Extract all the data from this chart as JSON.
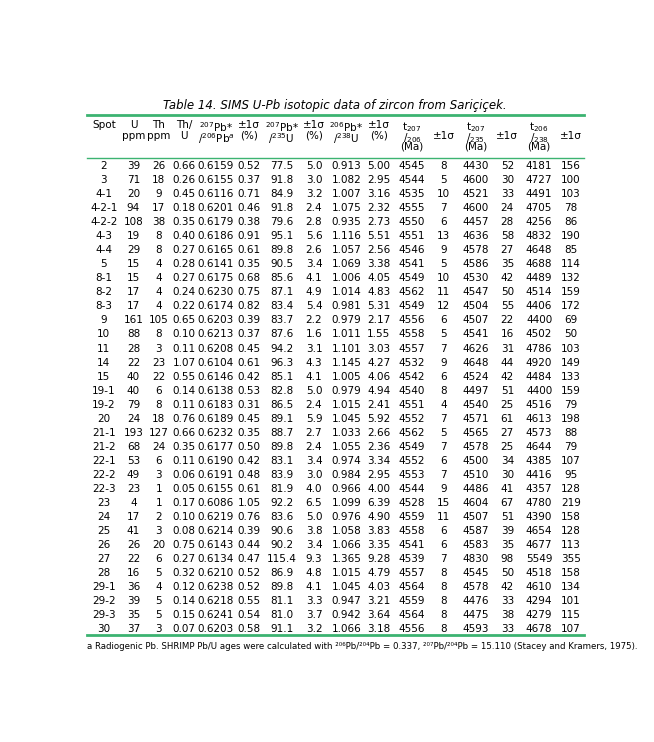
{
  "title": "Table 14. SIMS U-Pb isotopic data of zircon from Sariçiçek.",
  "bg_color": "#ffffff",
  "line_color": "#3cb371",
  "text_color": "#000000",
  "font_size": 7.5,
  "header_font_size": 7.5,
  "rows": [
    [
      "2",
      "39",
      "26",
      "0.66",
      "0.6159",
      "0.52",
      "77.5",
      "5.0",
      "0.913",
      "5.00",
      "4545",
      "8",
      "4430",
      "52",
      "4181",
      "156"
    ],
    [
      "3",
      "71",
      "18",
      "0.26",
      "0.6155",
      "0.37",
      "91.8",
      "3.0",
      "1.082",
      "2.95",
      "4544",
      "5",
      "4600",
      "30",
      "4727",
      "100"
    ],
    [
      "4-1",
      "20",
      "9",
      "0.45",
      "0.6116",
      "0.71",
      "84.9",
      "3.2",
      "1.007",
      "3.16",
      "4535",
      "10",
      "4521",
      "33",
      "4491",
      "103"
    ],
    [
      "4-2-1",
      "94",
      "17",
      "0.18",
      "0.6201",
      "0.46",
      "91.8",
      "2.4",
      "1.075",
      "2.32",
      "4555",
      "7",
      "4600",
      "24",
      "4705",
      "78"
    ],
    [
      "4-2-2",
      "108",
      "38",
      "0.35",
      "0.6179",
      "0.38",
      "79.6",
      "2.8",
      "0.935",
      "2.73",
      "4550",
      "6",
      "4457",
      "28",
      "4256",
      "86"
    ],
    [
      "4-3",
      "19",
      "8",
      "0.40",
      "0.6186",
      "0.91",
      "95.1",
      "5.6",
      "1.116",
      "5.51",
      "4551",
      "13",
      "4636",
      "58",
      "4832",
      "190"
    ],
    [
      "4-4",
      "29",
      "8",
      "0.27",
      "0.6165",
      "0.61",
      "89.8",
      "2.6",
      "1.057",
      "2.56",
      "4546",
      "9",
      "4578",
      "27",
      "4648",
      "85"
    ],
    [
      "5",
      "15",
      "4",
      "0.28",
      "0.6141",
      "0.35",
      "90.5",
      "3.4",
      "1.069",
      "3.38",
      "4541",
      "5",
      "4586",
      "35",
      "4688",
      "114"
    ],
    [
      "8-1",
      "15",
      "4",
      "0.27",
      "0.6175",
      "0.68",
      "85.6",
      "4.1",
      "1.006",
      "4.05",
      "4549",
      "10",
      "4530",
      "42",
      "4489",
      "132"
    ],
    [
      "8-2",
      "17",
      "4",
      "0.24",
      "0.6230",
      "0.75",
      "87.1",
      "4.9",
      "1.014",
      "4.83",
      "4562",
      "11",
      "4547",
      "50",
      "4514",
      "159"
    ],
    [
      "8-3",
      "17",
      "4",
      "0.22",
      "0.6174",
      "0.82",
      "83.4",
      "5.4",
      "0.981",
      "5.31",
      "4549",
      "12",
      "4504",
      "55",
      "4406",
      "172"
    ],
    [
      "9",
      "161",
      "105",
      "0.65",
      "0.6203",
      "0.39",
      "83.7",
      "2.2",
      "0.979",
      "2.17",
      "4556",
      "6",
      "4507",
      "22",
      "4400",
      "69"
    ],
    [
      "10",
      "88",
      "8",
      "0.10",
      "0.6213",
      "0.37",
      "87.6",
      "1.6",
      "1.011",
      "1.55",
      "4558",
      "5",
      "4541",
      "16",
      "4502",
      "50"
    ],
    [
      "11",
      "28",
      "3",
      "0.11",
      "0.6208",
      "0.45",
      "94.2",
      "3.1",
      "1.101",
      "3.03",
      "4557",
      "7",
      "4626",
      "31",
      "4786",
      "103"
    ],
    [
      "14",
      "22",
      "23",
      "1.07",
      "0.6104",
      "0.61",
      "96.3",
      "4.3",
      "1.145",
      "4.27",
      "4532",
      "9",
      "4648",
      "44",
      "4920",
      "149"
    ],
    [
      "15",
      "40",
      "22",
      "0.55",
      "0.6146",
      "0.42",
      "85.1",
      "4.1",
      "1.005",
      "4.06",
      "4542",
      "6",
      "4524",
      "42",
      "4484",
      "133"
    ],
    [
      "19-1",
      "40",
      "6",
      "0.14",
      "0.6138",
      "0.53",
      "82.8",
      "5.0",
      "0.979",
      "4.94",
      "4540",
      "8",
      "4497",
      "51",
      "4400",
      "159"
    ],
    [
      "19-2",
      "79",
      "8",
      "0.11",
      "0.6183",
      "0.31",
      "86.5",
      "2.4",
      "1.015",
      "2.41",
      "4551",
      "4",
      "4540",
      "25",
      "4516",
      "79"
    ],
    [
      "20",
      "24",
      "18",
      "0.76",
      "0.6189",
      "0.45",
      "89.1",
      "5.9",
      "1.045",
      "5.92",
      "4552",
      "7",
      "4571",
      "61",
      "4613",
      "198"
    ],
    [
      "21-1",
      "193",
      "127",
      "0.66",
      "0.6232",
      "0.35",
      "88.7",
      "2.7",
      "1.033",
      "2.66",
      "4562",
      "5",
      "4565",
      "27",
      "4573",
      "88"
    ],
    [
      "21-2",
      "68",
      "24",
      "0.35",
      "0.6177",
      "0.50",
      "89.8",
      "2.4",
      "1.055",
      "2.36",
      "4549",
      "7",
      "4578",
      "25",
      "4644",
      "79"
    ],
    [
      "22-1",
      "53",
      "6",
      "0.11",
      "0.6190",
      "0.42",
      "83.1",
      "3.4",
      "0.974",
      "3.34",
      "4552",
      "6",
      "4500",
      "34",
      "4385",
      "107"
    ],
    [
      "22-2",
      "49",
      "3",
      "0.06",
      "0.6191",
      "0.48",
      "83.9",
      "3.0",
      "0.984",
      "2.95",
      "4553",
      "7",
      "4510",
      "30",
      "4416",
      "95"
    ],
    [
      "22-3",
      "23",
      "1",
      "0.05",
      "0.6155",
      "0.61",
      "81.9",
      "4.0",
      "0.966",
      "4.00",
      "4544",
      "9",
      "4486",
      "41",
      "4357",
      "128"
    ],
    [
      "23",
      "4",
      "1",
      "0.17",
      "0.6086",
      "1.05",
      "92.2",
      "6.5",
      "1.099",
      "6.39",
      "4528",
      "15",
      "4604",
      "67",
      "4780",
      "219"
    ],
    [
      "24",
      "17",
      "2",
      "0.10",
      "0.6219",
      "0.76",
      "83.6",
      "5.0",
      "0.976",
      "4.90",
      "4559",
      "11",
      "4507",
      "51",
      "4390",
      "158"
    ],
    [
      "25",
      "41",
      "3",
      "0.08",
      "0.6214",
      "0.39",
      "90.6",
      "3.8",
      "1.058",
      "3.83",
      "4558",
      "6",
      "4587",
      "39",
      "4654",
      "128"
    ],
    [
      "26",
      "26",
      "20",
      "0.75",
      "0.6143",
      "0.44",
      "90.2",
      "3.4",
      "1.066",
      "3.35",
      "4541",
      "6",
      "4583",
      "35",
      "4677",
      "113"
    ],
    [
      "27",
      "22",
      "6",
      "0.27",
      "0.6134",
      "0.47",
      "115.4",
      "9.3",
      "1.365",
      "9.28",
      "4539",
      "7",
      "4830",
      "98",
      "5549",
      "355"
    ],
    [
      "28",
      "16",
      "5",
      "0.32",
      "0.6210",
      "0.52",
      "86.9",
      "4.8",
      "1.015",
      "4.79",
      "4557",
      "8",
      "4545",
      "50",
      "4518",
      "158"
    ],
    [
      "29-1",
      "36",
      "4",
      "0.12",
      "0.6238",
      "0.52",
      "89.8",
      "4.1",
      "1.045",
      "4.03",
      "4564",
      "8",
      "4578",
      "42",
      "4610",
      "134"
    ],
    [
      "29-2",
      "39",
      "5",
      "0.14",
      "0.6218",
      "0.55",
      "81.1",
      "3.3",
      "0.947",
      "3.21",
      "4559",
      "8",
      "4476",
      "33",
      "4294",
      "101"
    ],
    [
      "29-3",
      "35",
      "5",
      "0.15",
      "0.6241",
      "0.54",
      "81.0",
      "3.7",
      "0.942",
      "3.64",
      "4564",
      "8",
      "4475",
      "38",
      "4279",
      "115"
    ],
    [
      "30",
      "37",
      "3",
      "0.07",
      "0.6203",
      "0.58",
      "91.1",
      "3.2",
      "1.066",
      "3.18",
      "4556",
      "8",
      "4593",
      "33",
      "4678",
      "107"
    ]
  ]
}
